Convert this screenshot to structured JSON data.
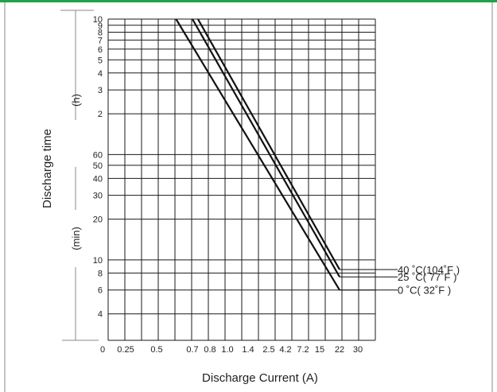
{
  "colors": {
    "top_bar": "#1fa347",
    "frame": "#8a8a8a",
    "line": "#111111"
  },
  "chart_data": {
    "type": "line",
    "title": "",
    "xlabel": "Discharge Current (A)",
    "ylabel": "Discharge time",
    "x_scale": "log",
    "y_scale": "log",
    "x_tick_labels": [
      "0",
      "0.25",
      "0.5",
      "0.7",
      "0.8",
      "1.0",
      "1.4",
      "2.5",
      "4.2",
      "7.2",
      "15",
      "22",
      "30"
    ],
    "y_unit_labels": [
      "(h)",
      "(min)"
    ],
    "y_tick_labels_hours": [
      "10",
      "9",
      "8",
      "7",
      "6",
      "5",
      "4",
      "3",
      "2"
    ],
    "y_tick_labels_minutes": [
      "60",
      "50",
      "40",
      "30",
      "20",
      "10",
      "8",
      "6",
      "4"
    ],
    "ylim_minutes": [
      3,
      600
    ],
    "grid": true,
    "legend_position": "right",
    "series": [
      {
        "name": "40 ˚C(104˚F )",
        "x": [
          0.73,
          22
        ],
        "y_minutes": [
          600,
          8.5
        ]
      },
      {
        "name": "25 ˚C(  77˚F )",
        "x": [
          0.7,
          22
        ],
        "y_minutes": [
          600,
          7.5
        ]
      },
      {
        "name": "0 ˚C(  32˚F )",
        "x": [
          0.6,
          22
        ],
        "y_minutes": [
          600,
          6
        ]
      }
    ]
  }
}
